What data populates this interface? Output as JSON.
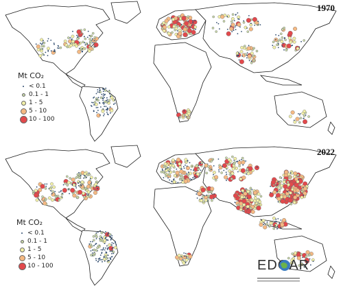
{
  "panels": [
    {
      "year": "1970"
    },
    {
      "year": "2022"
    }
  ],
  "legend": {
    "title": "Mt CO₂",
    "classes": [
      {
        "label": "< 0.1",
        "color": "#2f4b6e"
      },
      {
        "label": "0.1 - 1",
        "color": "#c9d9a9"
      },
      {
        "label": "1 - 5",
        "color": "#f2f0a8"
      },
      {
        "label": "5 - 10",
        "color": "#f5b983"
      },
      {
        "label": "10 - 100",
        "color": "#e2494c"
      }
    ]
  },
  "logo": {
    "text": "EDGAR"
  },
  "colors": {
    "land_outline": "#1a1a1a",
    "land_fill": "#ffffff"
  }
}
